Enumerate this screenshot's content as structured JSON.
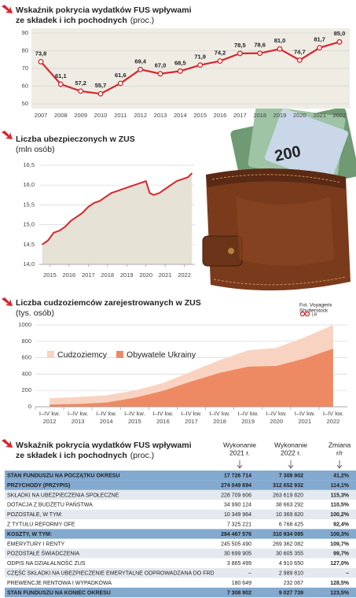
{
  "chart_data": [
    {
      "type": "line",
      "title": [
        "Wskaźnik pokrycia wydatków FUS wpływami",
        "ze składek i ich pochodnych"
      ],
      "subtitle": "(proc.)",
      "categories": [
        "2007",
        "2008",
        "2009",
        "2010",
        "2011",
        "2012",
        "2013",
        "2014",
        "2015",
        "2016",
        "2017",
        "2018",
        "2019",
        "2020",
        "2021",
        "2022"
      ],
      "values": [
        73.8,
        61.1,
        57.2,
        55.7,
        61.6,
        69.4,
        67.0,
        68.5,
        71.9,
        74.2,
        78.5,
        78.6,
        81.0,
        74.7,
        81.7,
        85.0
      ],
      "value_labels": [
        "73,8",
        "61,1",
        "57,2",
        "55,7",
        "61,6",
        "69,4",
        "67,0",
        "68,5",
        "71,9",
        "74,2",
        "78,5",
        "78,6",
        "81,0",
        "74,7",
        "81,7",
        "85,0"
      ],
      "color": "#d7262e",
      "ylim": [
        50,
        90
      ],
      "yticks": [
        50,
        60,
        70,
        80,
        90
      ],
      "grid": true
    },
    {
      "type": "area",
      "title": [
        "Liczba ubezpieczonych w ZUS"
      ],
      "subtitle": "(mln osób)",
      "x": [
        2014.6,
        2014.9,
        2015.2,
        2015.5,
        2015.8,
        2016.1,
        2016.4,
        2016.7,
        2017.0,
        2017.3,
        2017.6,
        2017.9,
        2018.2,
        2018.5,
        2018.8,
        2019.1,
        2019.4,
        2019.7,
        2020.0,
        2020.2,
        2020.4,
        2020.7,
        2021.0,
        2021.3,
        2021.6,
        2021.9,
        2022.2,
        2022.4
      ],
      "values": [
        14.5,
        14.6,
        14.8,
        14.85,
        14.95,
        15.1,
        15.2,
        15.3,
        15.45,
        15.55,
        15.6,
        15.7,
        15.8,
        15.85,
        15.9,
        15.95,
        16.0,
        16.05,
        16.1,
        15.8,
        15.75,
        15.8,
        15.9,
        16.0,
        16.1,
        16.15,
        16.2,
        16.3
      ],
      "color": "#d7262e",
      "fill": "#e6e2d5",
      "xlim": [
        2014.45,
        2022.55
      ],
      "xticks": [
        2015,
        2016,
        2017,
        2018,
        2019,
        2020,
        2021,
        2022
      ],
      "ylim": [
        14,
        16.5
      ],
      "yticks": [
        {
          "value": 14,
          "label": "14,0"
        },
        {
          "value": 14.5,
          "label": "14,5"
        },
        {
          "value": 15,
          "label": "15,0"
        },
        {
          "value": 15.5,
          "label": "15,5"
        },
        {
          "value": 16,
          "label": "16,0"
        },
        {
          "value": 16.5,
          "label": "16,5"
        }
      ],
      "grid": true
    },
    {
      "type": "overlap-area",
      "title": [
        "Liczba cudzoziemców zarejestrowanych w ZUS"
      ],
      "subtitle": "(tys. osób)",
      "period_label": "I–IV kw.",
      "categories": [
        "2012",
        "2013",
        "2014",
        "2015",
        "2016",
        "2017",
        "2018",
        "2019",
        "2020",
        "2021",
        "2022"
      ],
      "series": [
        {
          "name": "Cudzoziemcy",
          "color": "#f9d3c2",
          "values": [
            105,
            120,
            140,
            200,
            290,
            430,
            570,
            690,
            720,
            850,
            1000
          ]
        },
        {
          "name": "Obywatele Ukrainy",
          "color": "#ee8a63",
          "values": [
            28,
            35,
            52,
            110,
            195,
            310,
            415,
            490,
            500,
            590,
            710
          ]
        }
      ],
      "ylim": [
        0,
        1000
      ],
      "yticks": [
        0,
        200,
        400,
        600,
        800,
        1000
      ],
      "grid": true,
      "legend": "upper-left"
    }
  ],
  "photo_credit": [
    "Fot. Voyagerix",
    "Shutterstock"
  ],
  "photo_tag": "LR",
  "table": {
    "title": [
      "Wskaźnik pokrycia wydatków FUS wpływami",
      "ze składek i ich pochodnych"
    ],
    "subtitle": "(proc.)",
    "columns": [
      [
        "Wykonanie",
        "2021 r."
      ],
      [
        "Wykonanie",
        "2022 r."
      ],
      [
        "Zmiana",
        "r/r"
      ]
    ],
    "rows": [
      {
        "label": "STAN FUNDUSZU NA POCZĄTKU OKRESU",
        "values": [
          "17 726 714",
          "7 308 902",
          "41,2%"
        ],
        "highlight": true
      },
      {
        "label": "PRZYCHODY (PRZYPIS)",
        "values": [
          "274 049 694",
          "312 652 932",
          "114,1%"
        ],
        "highlight": true
      },
      {
        "label": "SKŁADKI NA UBEZPIECZENIA SPOŁECZNE",
        "values": [
          "228 709 606",
          "263 619 820",
          "115,3%"
        ],
        "highlight": false
      },
      {
        "label": "DOTACJA Z BUDŻETU PAŃSTWA",
        "values": [
          "34 990 124",
          "38 663 292",
          "110,5%"
        ],
        "highlight": false
      },
      {
        "label": "POZOSTAŁE, W TYM:",
        "values": [
          "10 349 964",
          "10 369 820",
          "100,2%"
        ],
        "highlight": false
      },
      {
        "label": "Z TYTUŁU REFORMY OFE",
        "values": [
          "7 325 221",
          "6 768 425",
          "92,4%"
        ],
        "highlight": false
      },
      {
        "label": "KOSZTY, W TYM:",
        "values": [
          "284 467 576",
          "310 934 095",
          "109,3%"
        ],
        "highlight": true
      },
      {
        "label": "EMERYTURY I RENTY",
        "values": [
          "245 505 490",
          "269 362 082",
          "109,7%"
        ],
        "highlight": false
      },
      {
        "label": "POZOSTAŁE ŚWIADCZENIA",
        "values": [
          "30 699 905",
          "30 605 355",
          "99,7%"
        ],
        "highlight": false
      },
      {
        "label": "ODPIS NA DZIAŁALNOŚĆ ZUS",
        "values": [
          "3 865 499",
          "4 910 650",
          "127,0%"
        ],
        "highlight": false
      },
      {
        "label": "CZĘŚĆ SKŁADKI NA UBEZPIECZENIE EMERYTALNE ODPROWADZANA DO FRD",
        "values": [
          "–",
          "2 989 810",
          "–"
        ],
        "highlight": false
      },
      {
        "label": "PREWENCJE RENTOWA I WYPADKOWA",
        "values": [
          "180 649",
          "232 067",
          "128,5%"
        ],
        "highlight": false
      },
      {
        "label": "STAN FUNDUSZU NA KONIEC OKRESU",
        "values": [
          "7 308 902",
          "9 027 739",
          "123,5%"
        ],
        "highlight": true
      }
    ]
  }
}
